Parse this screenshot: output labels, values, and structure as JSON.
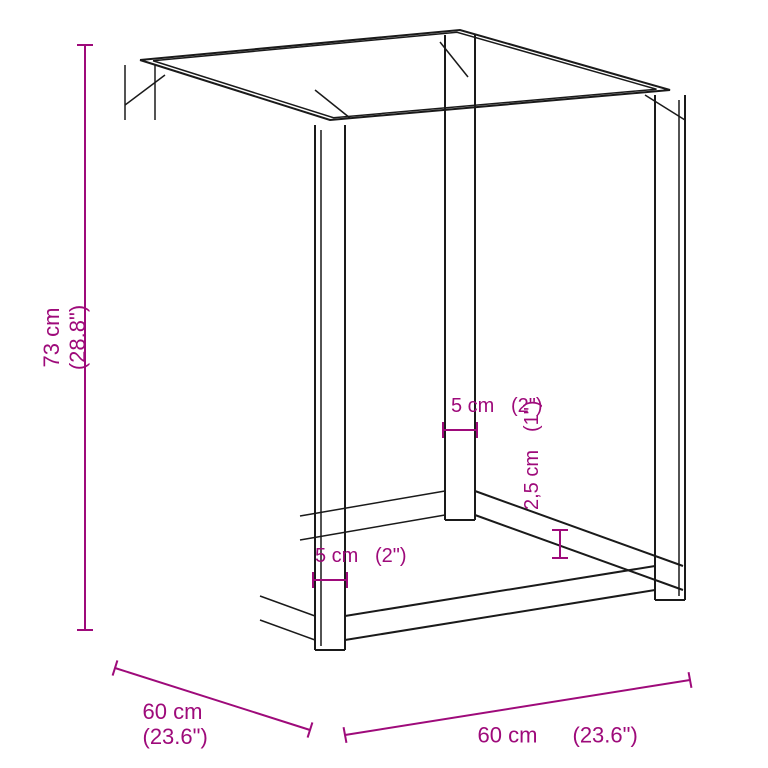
{
  "diagram": {
    "type": "technical-drawing",
    "background_color": "#ffffff",
    "line_color": "#1a1a1a",
    "dimension_color": "#9e0a7a",
    "font_family": "Arial, sans-serif",
    "label_fontsize": 22,
    "label_fontsize_small": 20,
    "dimensions": {
      "height": {
        "cm": "73 cm",
        "in": "(28.8\")"
      },
      "depth": {
        "cm": "60 cm",
        "in": "(23.6\")"
      },
      "width": {
        "cm": "60 cm",
        "in": "(23.6\")"
      },
      "leg_width_front": {
        "cm": "5 cm",
        "in": "(2\")"
      },
      "leg_width_back": {
        "cm": "5 cm",
        "in": "(2\")"
      },
      "rail_height": {
        "cm": "2,5 cm",
        "in": "(1\")"
      }
    },
    "tick_half_length": 8
  }
}
